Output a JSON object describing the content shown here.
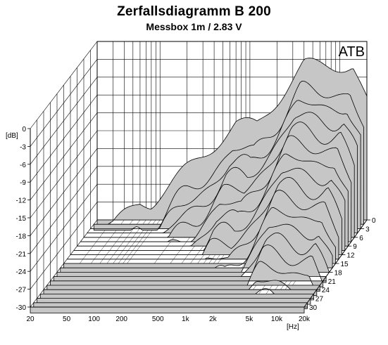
{
  "title": "Zerfallsdiagramm  B 200",
  "subtitle": "Messbox 1m / 2.83 V",
  "brand": "ATB",
  "chart_data": {
    "type": "waterfall",
    "title": "Zerfallsdiagramm  B 200",
    "subtitle": "Messbox 1m / 2.83 V",
    "ylabel": "[dB]",
    "xlabel": "[Hz]",
    "x_scale": "log",
    "xlim": [
      20,
      20000
    ],
    "ylim": [
      -30,
      0
    ],
    "zlim": [
      0,
      30
    ],
    "x_ticks": [
      "20",
      "50",
      "100",
      "200",
      "500",
      "1k",
      "2k",
      "5k",
      "10k",
      "20k"
    ],
    "y_ticks": [
      "0",
      "-3",
      "-6",
      "-9",
      "-12",
      "-15",
      "-18",
      "-21",
      "-24",
      "-27",
      "-30"
    ],
    "z_ticks": [
      "0",
      "3",
      "6",
      "9",
      "12",
      "15",
      "18",
      "21",
      "24",
      "27",
      "30"
    ],
    "grid": true
  }
}
